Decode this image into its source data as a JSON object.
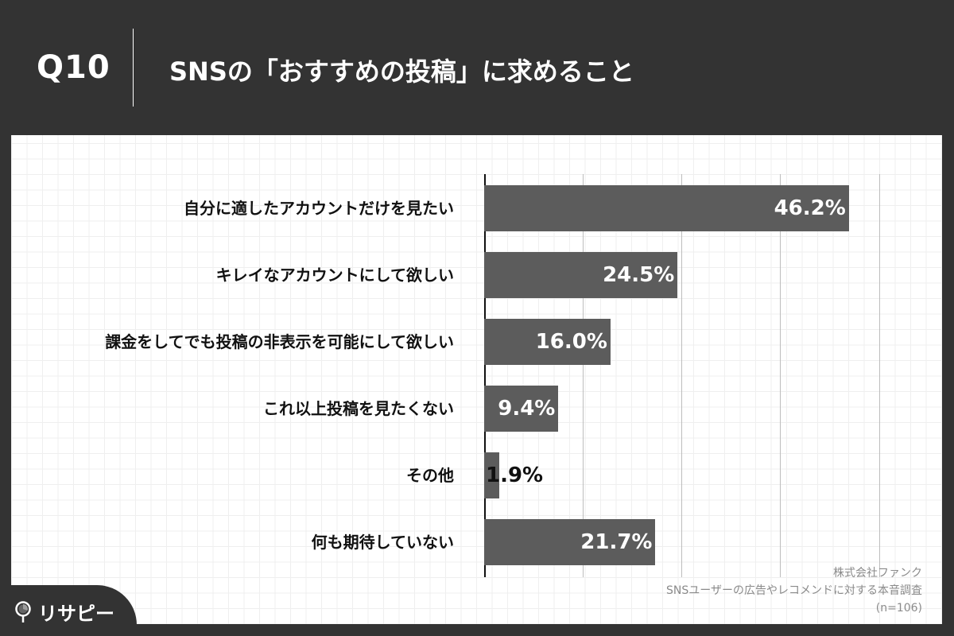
{
  "header": {
    "question_number": "Q10",
    "title": "SNSの「おすすめの投稿」に求めること"
  },
  "chart_data": {
    "type": "bar",
    "orientation": "horizontal",
    "title": "SNSの「おすすめの投稿」に求めること",
    "categories": [
      "自分に適したアカウントだけを見たい",
      "キレイなアカウントにして欲しい",
      "課金をしてでも投稿の非表示を可能にして欲しい",
      "これ以上投稿を見たくない",
      "その他",
      "何も期待していない"
    ],
    "values": [
      46.2,
      24.5,
      16.0,
      9.4,
      1.9,
      21.7
    ],
    "value_labels": [
      "46.2%",
      "24.5%",
      "16.0%",
      "9.4%",
      "1.9%",
      "21.7%"
    ],
    "unit": "%",
    "xlim": [
      0,
      50
    ],
    "gridlines": [
      12.5,
      25,
      37.5,
      50
    ],
    "grid": true,
    "legend": null,
    "bar_color": "#5c5c5c",
    "xlabel": "",
    "ylabel": ""
  },
  "source": {
    "company": "株式会社ファンク",
    "survey": "SNSユーザーの広告やレコメンドに対する本音調査",
    "sample": "(n=106)"
  },
  "logo": {
    "text": "リサピー"
  },
  "colors": {
    "background": "#333333",
    "panel": "#ffffff",
    "bar": "#5c5c5c",
    "text": "#111111",
    "source_text": "#8a8a8a"
  }
}
